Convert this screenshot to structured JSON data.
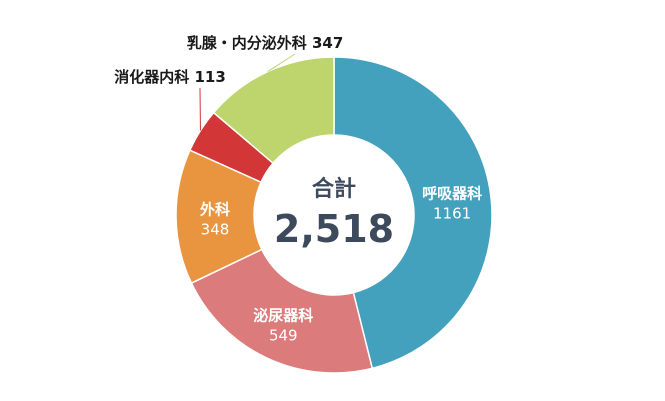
{
  "chart_data": {
    "type": "pie",
    "donut": true,
    "center": {
      "title": "合計",
      "total_label": "2,518"
    },
    "slices": [
      {
        "label": "呼吸器科",
        "value": 1161,
        "value_label": "1161",
        "color": "#43a1bd",
        "label_placement": "inside"
      },
      {
        "label": "泌尿器科",
        "value": 549,
        "value_label": "549",
        "color": "#dc7b7b",
        "label_placement": "inside"
      },
      {
        "label": "外科",
        "value": 348,
        "value_label": "348",
        "color": "#e9953f",
        "label_placement": "inside"
      },
      {
        "label": "消化器内科",
        "value": 113,
        "value_label": "113",
        "color": "#d23637",
        "label_placement": "outside"
      },
      {
        "label": "乳腺・内分泌外科",
        "value": 347,
        "value_label": "347",
        "color": "#bdd56c",
        "label_placement": "outside"
      }
    ]
  }
}
